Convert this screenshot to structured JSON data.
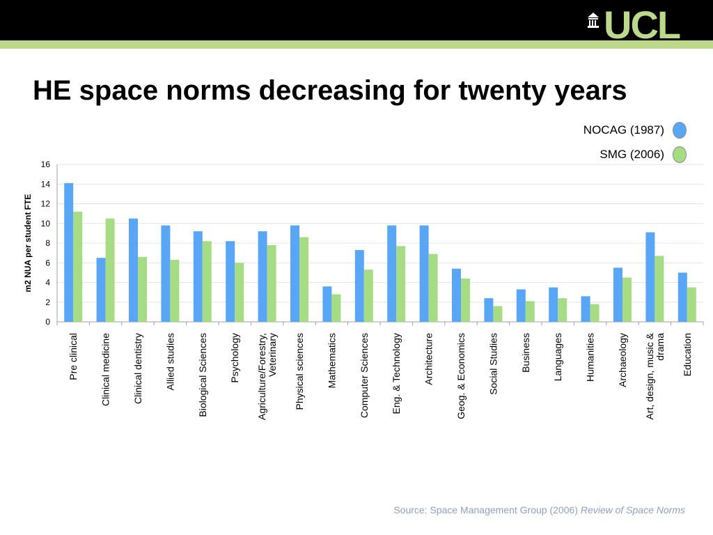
{
  "header": {
    "logo_text": "UCL"
  },
  "title": "HE space norms decreasing for twenty years",
  "legend": [
    {
      "label": "NOCAG (1987)",
      "color": "#5aa6f6"
    },
    {
      "label": "SMG (2006)",
      "color": "#a6dc84"
    }
  ],
  "source": {
    "prefix": "Source: Space Management Group (2006)",
    "italic": "Review of Space Norms"
  },
  "chart_data": {
    "type": "bar",
    "ylabel": "m2 NUA per student FTE",
    "xlabel": "",
    "ylim": [
      0,
      16
    ],
    "yticks": [
      0,
      2,
      4,
      6,
      8,
      10,
      12,
      14,
      16
    ],
    "grid": true,
    "categories": [
      "Pre clinical",
      "Clinical medicine",
      "Clinical dentistry",
      "Allied studies",
      "Biological Sciences",
      "Psychology",
      "Agriculture/Forestry,\nVeterinary",
      "Physical sciences",
      "Mathematics",
      "Computer Sciences",
      "Eng. & Technology",
      "Architecture",
      "Geog. & Economics",
      "Social Studies",
      "Business",
      "Languages",
      "Humanities",
      "Archaeology",
      "Art, design, music &\ndrama",
      "Education"
    ],
    "series": [
      {
        "name": "NOCAG (1987)",
        "color": "#5aa6f6",
        "values": [
          14.1,
          6.5,
          10.5,
          9.8,
          9.2,
          8.2,
          9.2,
          9.8,
          3.6,
          7.3,
          9.8,
          9.8,
          5.4,
          2.4,
          3.3,
          3.5,
          2.6,
          5.5,
          9.1,
          5.0
        ]
      },
      {
        "name": "SMG (2006)",
        "color": "#a6dc84",
        "values": [
          11.2,
          10.5,
          6.6,
          6.3,
          8.2,
          6.0,
          7.8,
          8.6,
          2.8,
          5.3,
          7.7,
          6.9,
          4.4,
          1.6,
          2.1,
          2.4,
          1.8,
          4.5,
          6.7,
          3.5
        ]
      }
    ]
  }
}
